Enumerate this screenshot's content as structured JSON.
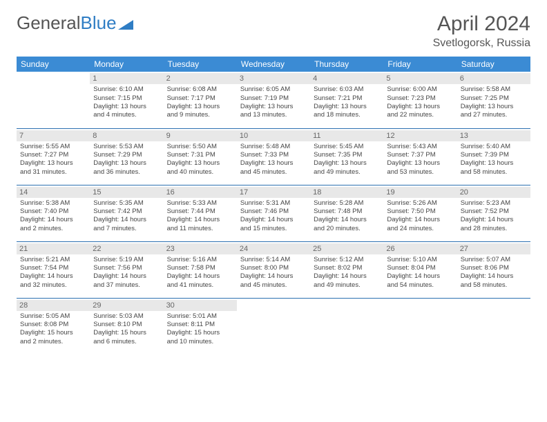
{
  "brand": {
    "part1": "General",
    "part2": "Blue"
  },
  "title": {
    "month": "April 2024",
    "location": "Svetlogorsk, Russia"
  },
  "colors": {
    "header_bg": "#3b8bd4",
    "header_text": "#ffffff",
    "daynum_bg": "#e8e8e8",
    "border": "#2a6fb0",
    "logo_gray": "#555555",
    "logo_blue": "#2f7dc4"
  },
  "weekdays": [
    "Sunday",
    "Monday",
    "Tuesday",
    "Wednesday",
    "Thursday",
    "Friday",
    "Saturday"
  ],
  "weeks": [
    [
      {
        "day": "",
        "lines": [
          "",
          "",
          "",
          ""
        ]
      },
      {
        "day": "1",
        "lines": [
          "Sunrise: 6:10 AM",
          "Sunset: 7:15 PM",
          "Daylight: 13 hours",
          "and 4 minutes."
        ]
      },
      {
        "day": "2",
        "lines": [
          "Sunrise: 6:08 AM",
          "Sunset: 7:17 PM",
          "Daylight: 13 hours",
          "and 9 minutes."
        ]
      },
      {
        "day": "3",
        "lines": [
          "Sunrise: 6:05 AM",
          "Sunset: 7:19 PM",
          "Daylight: 13 hours",
          "and 13 minutes."
        ]
      },
      {
        "day": "4",
        "lines": [
          "Sunrise: 6:03 AM",
          "Sunset: 7:21 PM",
          "Daylight: 13 hours",
          "and 18 minutes."
        ]
      },
      {
        "day": "5",
        "lines": [
          "Sunrise: 6:00 AM",
          "Sunset: 7:23 PM",
          "Daylight: 13 hours",
          "and 22 minutes."
        ]
      },
      {
        "day": "6",
        "lines": [
          "Sunrise: 5:58 AM",
          "Sunset: 7:25 PM",
          "Daylight: 13 hours",
          "and 27 minutes."
        ]
      }
    ],
    [
      {
        "day": "7",
        "lines": [
          "Sunrise: 5:55 AM",
          "Sunset: 7:27 PM",
          "Daylight: 13 hours",
          "and 31 minutes."
        ]
      },
      {
        "day": "8",
        "lines": [
          "Sunrise: 5:53 AM",
          "Sunset: 7:29 PM",
          "Daylight: 13 hours",
          "and 36 minutes."
        ]
      },
      {
        "day": "9",
        "lines": [
          "Sunrise: 5:50 AM",
          "Sunset: 7:31 PM",
          "Daylight: 13 hours",
          "and 40 minutes."
        ]
      },
      {
        "day": "10",
        "lines": [
          "Sunrise: 5:48 AM",
          "Sunset: 7:33 PM",
          "Daylight: 13 hours",
          "and 45 minutes."
        ]
      },
      {
        "day": "11",
        "lines": [
          "Sunrise: 5:45 AM",
          "Sunset: 7:35 PM",
          "Daylight: 13 hours",
          "and 49 minutes."
        ]
      },
      {
        "day": "12",
        "lines": [
          "Sunrise: 5:43 AM",
          "Sunset: 7:37 PM",
          "Daylight: 13 hours",
          "and 53 minutes."
        ]
      },
      {
        "day": "13",
        "lines": [
          "Sunrise: 5:40 AM",
          "Sunset: 7:39 PM",
          "Daylight: 13 hours",
          "and 58 minutes."
        ]
      }
    ],
    [
      {
        "day": "14",
        "lines": [
          "Sunrise: 5:38 AM",
          "Sunset: 7:40 PM",
          "Daylight: 14 hours",
          "and 2 minutes."
        ]
      },
      {
        "day": "15",
        "lines": [
          "Sunrise: 5:35 AM",
          "Sunset: 7:42 PM",
          "Daylight: 14 hours",
          "and 7 minutes."
        ]
      },
      {
        "day": "16",
        "lines": [
          "Sunrise: 5:33 AM",
          "Sunset: 7:44 PM",
          "Daylight: 14 hours",
          "and 11 minutes."
        ]
      },
      {
        "day": "17",
        "lines": [
          "Sunrise: 5:31 AM",
          "Sunset: 7:46 PM",
          "Daylight: 14 hours",
          "and 15 minutes."
        ]
      },
      {
        "day": "18",
        "lines": [
          "Sunrise: 5:28 AM",
          "Sunset: 7:48 PM",
          "Daylight: 14 hours",
          "and 20 minutes."
        ]
      },
      {
        "day": "19",
        "lines": [
          "Sunrise: 5:26 AM",
          "Sunset: 7:50 PM",
          "Daylight: 14 hours",
          "and 24 minutes."
        ]
      },
      {
        "day": "20",
        "lines": [
          "Sunrise: 5:23 AM",
          "Sunset: 7:52 PM",
          "Daylight: 14 hours",
          "and 28 minutes."
        ]
      }
    ],
    [
      {
        "day": "21",
        "lines": [
          "Sunrise: 5:21 AM",
          "Sunset: 7:54 PM",
          "Daylight: 14 hours",
          "and 32 minutes."
        ]
      },
      {
        "day": "22",
        "lines": [
          "Sunrise: 5:19 AM",
          "Sunset: 7:56 PM",
          "Daylight: 14 hours",
          "and 37 minutes."
        ]
      },
      {
        "day": "23",
        "lines": [
          "Sunrise: 5:16 AM",
          "Sunset: 7:58 PM",
          "Daylight: 14 hours",
          "and 41 minutes."
        ]
      },
      {
        "day": "24",
        "lines": [
          "Sunrise: 5:14 AM",
          "Sunset: 8:00 PM",
          "Daylight: 14 hours",
          "and 45 minutes."
        ]
      },
      {
        "day": "25",
        "lines": [
          "Sunrise: 5:12 AM",
          "Sunset: 8:02 PM",
          "Daylight: 14 hours",
          "and 49 minutes."
        ]
      },
      {
        "day": "26",
        "lines": [
          "Sunrise: 5:10 AM",
          "Sunset: 8:04 PM",
          "Daylight: 14 hours",
          "and 54 minutes."
        ]
      },
      {
        "day": "27",
        "lines": [
          "Sunrise: 5:07 AM",
          "Sunset: 8:06 PM",
          "Daylight: 14 hours",
          "and 58 minutes."
        ]
      }
    ],
    [
      {
        "day": "28",
        "lines": [
          "Sunrise: 5:05 AM",
          "Sunset: 8:08 PM",
          "Daylight: 15 hours",
          "and 2 minutes."
        ]
      },
      {
        "day": "29",
        "lines": [
          "Sunrise: 5:03 AM",
          "Sunset: 8:10 PM",
          "Daylight: 15 hours",
          "and 6 minutes."
        ]
      },
      {
        "day": "30",
        "lines": [
          "Sunrise: 5:01 AM",
          "Sunset: 8:11 PM",
          "Daylight: 15 hours",
          "and 10 minutes."
        ]
      },
      {
        "day": "",
        "lines": [
          "",
          "",
          "",
          ""
        ]
      },
      {
        "day": "",
        "lines": [
          "",
          "",
          "",
          ""
        ]
      },
      {
        "day": "",
        "lines": [
          "",
          "",
          "",
          ""
        ]
      },
      {
        "day": "",
        "lines": [
          "",
          "",
          "",
          ""
        ]
      }
    ]
  ]
}
